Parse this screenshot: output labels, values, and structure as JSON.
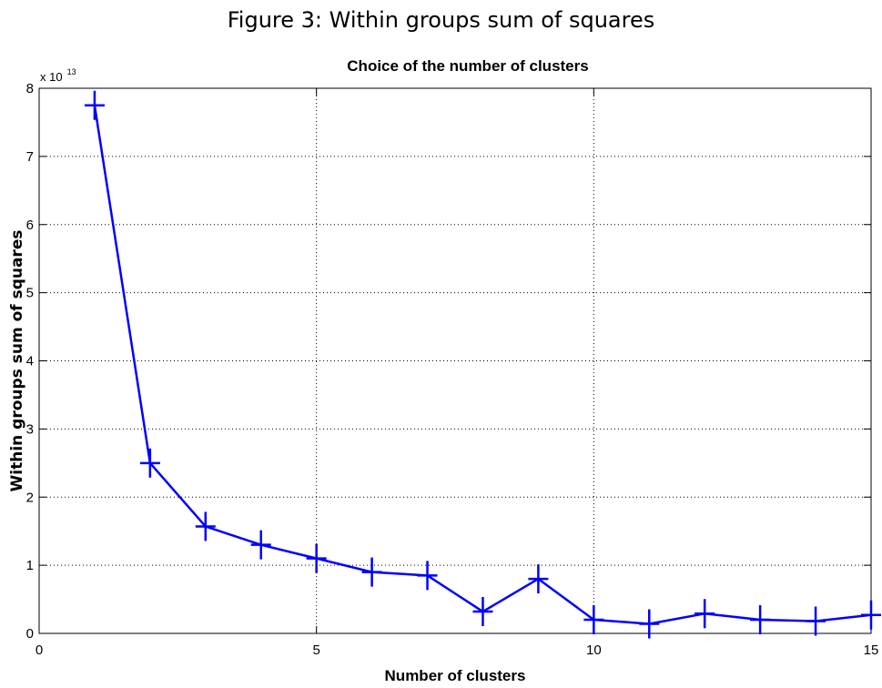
{
  "figure_caption": "Figure 3:   Within groups sum of squares",
  "chart_data": {
    "type": "line",
    "title": "Choice of the number of clusters",
    "xlabel": "Number of clusters",
    "ylabel": "Within groups sum of squares",
    "y_exponent_base": "x 10",
    "y_exponent_power": "13",
    "xlim": [
      0,
      15
    ],
    "ylim": [
      0,
      8
    ],
    "xticks": [
      0,
      5,
      10,
      15
    ],
    "yticks": [
      0,
      1,
      2,
      3,
      4,
      5,
      6,
      7,
      8
    ],
    "grid": true,
    "line_color": "#0000ff",
    "marker": "+",
    "series": [
      {
        "x": [
          1,
          2,
          3,
          4,
          5,
          6,
          7,
          8,
          9,
          10,
          11,
          12,
          13,
          14,
          15
        ],
        "values": [
          7.75,
          2.5,
          1.57,
          1.3,
          1.1,
          0.9,
          0.85,
          0.32,
          0.8,
          0.2,
          0.14,
          0.29,
          0.2,
          0.18,
          0.27
        ]
      }
    ]
  }
}
